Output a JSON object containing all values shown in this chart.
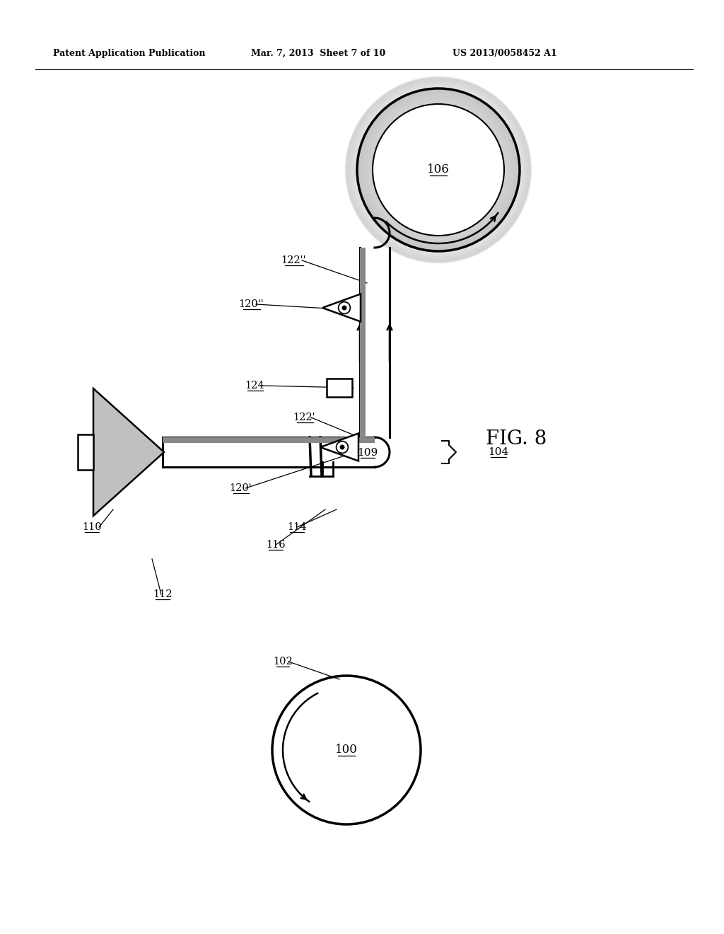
{
  "header_left": "Patent Application Publication",
  "header_mid": "Mar. 7, 2013  Sheet 7 of 10",
  "header_right": "US 2013/0058452 A1",
  "fig_label": "FIG. 8",
  "bg_color": "#ffffff",
  "line_color": "#000000",
  "gray_ring_color": "#999999",
  "cone_fill_color": "#c0c0c0",
  "belt_strip_color": "#888888"
}
